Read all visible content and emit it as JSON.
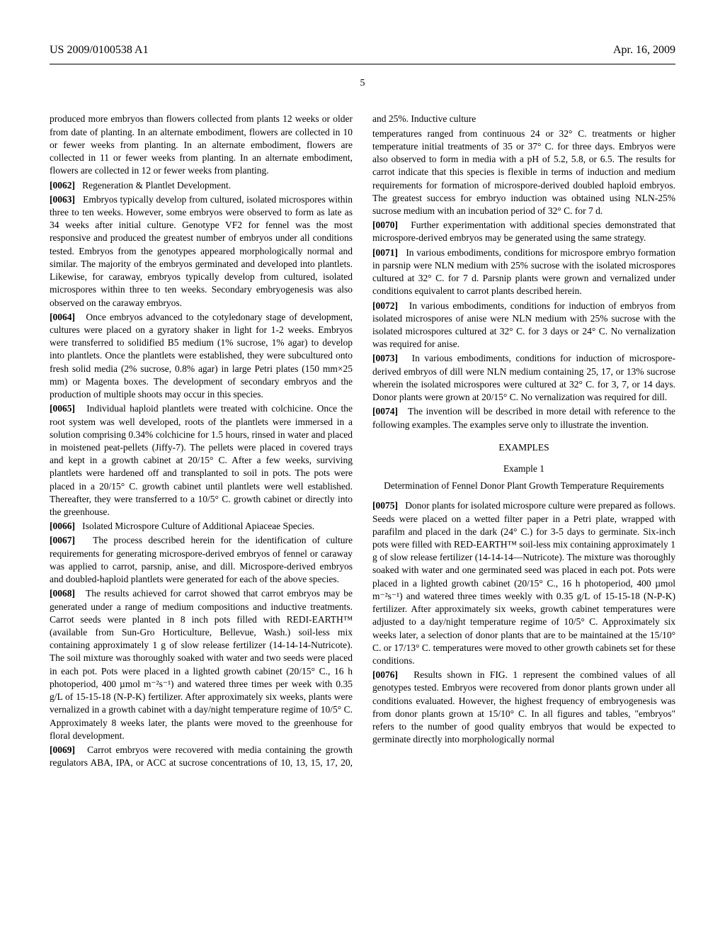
{
  "header": {
    "left": "US 2009/0100538 A1",
    "right": "Apr. 16, 2009"
  },
  "page_number": "5",
  "col1": {
    "p0061_tail": "produced more embryos than flowers collected from plants 12 weeks or older from date of planting. In an alternate embodiment, flowers are collected in 10 or fewer weeks from planting. In an alternate embodiment, flowers are collected in 11 or fewer weeks from planting. In an alternate embodiment, flowers are collected in 12 or fewer weeks from planting.",
    "p0062_num": "[0062]",
    "p0062": "Regeneration & Plantlet Development.",
    "p0063_num": "[0063]",
    "p0063": "Embryos typically develop from cultured, isolated microspores within three to ten weeks. However, some embryos were observed to form as late as 34 weeks after initial culture. Genotype VF2 for fennel was the most responsive and produced the greatest number of embryos under all conditions tested. Embryos from the genotypes appeared morphologically normal and similar. The majority of the embryos germinated and developed into plantlets. Likewise, for caraway, embryos typically develop from cultured, isolated microspores within three to ten weeks. Secondary embryogenesis was also observed on the caraway embryos.",
    "p0064_num": "[0064]",
    "p0064": "Once embryos advanced to the cotyledonary stage of development, cultures were placed on a gyratory shaker in light for 1-2 weeks. Embryos were transferred to solidified B5 medium (1% sucrose, 1% agar) to develop into plantlets. Once the plantlets were established, they were subcultured onto fresh solid media (2% sucrose, 0.8% agar) in large Petri plates (150 mm×25 mm) or Magenta boxes. The development of secondary embryos and the production of multiple shoots may occur in this species.",
    "p0065_num": "[0065]",
    "p0065": "Individual haploid plantlets were treated with colchicine. Once the root system was well developed, roots of the plantlets were immersed in a solution comprising 0.34% colchicine for 1.5 hours, rinsed in water and placed in moistened peat-pellets (Jiffy-7). The pellets were placed in covered trays and kept in a growth cabinet at 20/15° C. After a few weeks, surviving plantlets were hardened off and transplanted to soil in pots. The pots were placed in a 20/15° C. growth cabinet until plantlets were well established. Thereafter, they were transferred to a 10/5° C. growth cabinet or directly into the greenhouse.",
    "p0066_num": "[0066]",
    "p0066": "Isolated Microspore Culture of Additional Apiaceae Species.",
    "p0067_num": "[0067]",
    "p0067": "The process described herein for the identification of culture requirements for generating microspore-derived embryos of fennel or caraway was applied to carrot, parsnip, anise, and dill. Microspore-derived embryos and doubled-haploid plantlets were generated for each of the above species.",
    "p0068_num": "[0068]",
    "p0068": "The results achieved for carrot showed that carrot embryos may be generated under a range of medium compositions and inductive treatments. Carrot seeds were planted in 8 inch pots filled with REDI-EARTH™ (available from Sun-Gro Horticulture, Bellevue, Wash.) soil-less mix containing approximately 1 g of slow release fertilizer (14-14-14-Nutricote). The soil mixture was thoroughly soaked with water and two seeds were placed in each pot. Pots were placed in a lighted growth cabinet (20/15° C., 16 h photoperiod, 400 µmol m⁻²s⁻¹) and watered three times per week with 0.35 g/L of 15-15-18 (N-P-K) fertilizer. After approximately six weeks, plants were vernalized in a growth cabinet with a day/night temperature regime of 10/5° C. Approximately 8 weeks later, the plants were moved to the greenhouse for floral development.",
    "p0069_num": "[0069]",
    "p0069": "Carrot embryos were recovered with media containing the growth regulators ABA, IPA, or ACC at sucrose concentrations of 10, 13, 15, 17, 20, and 25%. Inductive culture"
  },
  "col2": {
    "p0069_tail": "temperatures ranged from continuous 24 or 32° C. treatments or higher temperature initial treatments of 35 or 37° C. for three days. Embryos were also observed to form in media with a pH of 5.2, 5.8, or 6.5. The results for carrot indicate that this species is flexible in terms of induction and medium requirements for formation of microspore-derived doubled haploid embryos. The greatest success for embryo induction was obtained using NLN-25% sucrose medium with an incubation period of 32° C. for 7 d.",
    "p0070_num": "[0070]",
    "p0070": "Further experimentation with additional species demonstrated that microspore-derived embryos may be generated using the same strategy.",
    "p0071_num": "[0071]",
    "p0071": "In various embodiments, conditions for microspore embryo formation in parsnip were NLN medium with 25% sucrose with the isolated microspores cultured at 32° C. for 7 d. Parsnip plants were grown and vernalized under conditions equivalent to carrot plants described herein.",
    "p0072_num": "[0072]",
    "p0072": "In various embodiments, conditions for induction of embryos from isolated microspores of anise were NLN medium with 25% sucrose with the isolated microspores cultured at 32° C. for 3 days or 24° C. No vernalization was required for anise.",
    "p0073_num": "[0073]",
    "p0073": "In various embodiments, conditions for induction of microspore-derived embryos of dill were NLN medium containing 25, 17, or 13% sucrose wherein the isolated microspores were cultured at 32° C. for 3, 7, or 14 days. Donor plants were grown at 20/15° C. No vernalization was required for dill.",
    "p0074_num": "[0074]",
    "p0074": "The invention will be described in more detail with reference to the following examples. The examples serve only to illustrate the invention.",
    "examples_head": "EXAMPLES",
    "example1_head": "Example 1",
    "example1_title": "Determination of Fennel Donor Plant Growth Temperature Requirements",
    "p0075_num": "[0075]",
    "p0075": "Donor plants for isolated microspore culture were prepared as follows. Seeds were placed on a wetted filter paper in a Petri plate, wrapped with parafilm and placed in the dark (24° C.) for 3-5 days to germinate. Six-inch pots were filled with RED-EARTH™ soil-less mix containing approximately 1 g of slow release fertilizer (14-14-14—Nutricote). The mixture was thoroughly soaked with water and one germinated seed was placed in each pot. Pots were placed in a lighted growth cabinet (20/15° C., 16 h photoperiod, 400 µmol m⁻²s⁻¹) and watered three times weekly with 0.35 g/L of 15-15-18 (N-P-K) fertilizer. After approximately six weeks, growth cabinet temperatures were adjusted to a day/night temperature regime of 10/5° C. Approximately six weeks later, a selection of donor plants that are to be maintained at the 15/10° C. or 17/13° C. temperatures were moved to other growth cabinets set for these conditions.",
    "p0076_num": "[0076]",
    "p0076": "Results shown in FIG. 1 represent the combined values of all genotypes tested. Embryos were recovered from donor plants grown under all conditions evaluated. However, the highest frequency of embryogenesis was from donor plants grown at 15/10° C. In all figures and tables, \"embryos\" refers to the number of good quality embryos that would be expected to germinate directly into morphologically normal"
  }
}
